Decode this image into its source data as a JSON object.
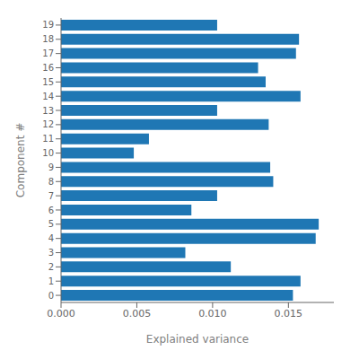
{
  "chart_data": {
    "type": "bar",
    "orientation": "horizontal",
    "xlabel": "Explained variance",
    "ylabel": "Component #",
    "categories": [
      "0",
      "1",
      "2",
      "3",
      "4",
      "5",
      "6",
      "7",
      "8",
      "9",
      "10",
      "11",
      "12",
      "13",
      "14",
      "15",
      "16",
      "17",
      "18",
      "19"
    ],
    "values": [
      0.0153,
      0.0158,
      0.0112,
      0.0082,
      0.0168,
      0.017,
      0.0086,
      0.0103,
      0.014,
      0.0138,
      0.0048,
      0.0058,
      0.0137,
      0.0103,
      0.0158,
      0.0135,
      0.013,
      0.0155,
      0.0157,
      0.0103
    ],
    "color": "#1f77b4",
    "xlim": [
      0,
      0.018
    ],
    "xticks": [
      {
        "value": 0,
        "label": "0.000"
      },
      {
        "value": 0.005,
        "label": "0.005"
      },
      {
        "value": 0.01,
        "label": "0.010"
      },
      {
        "value": 0.015,
        "label": "0.015"
      }
    ],
    "grid": false
  }
}
